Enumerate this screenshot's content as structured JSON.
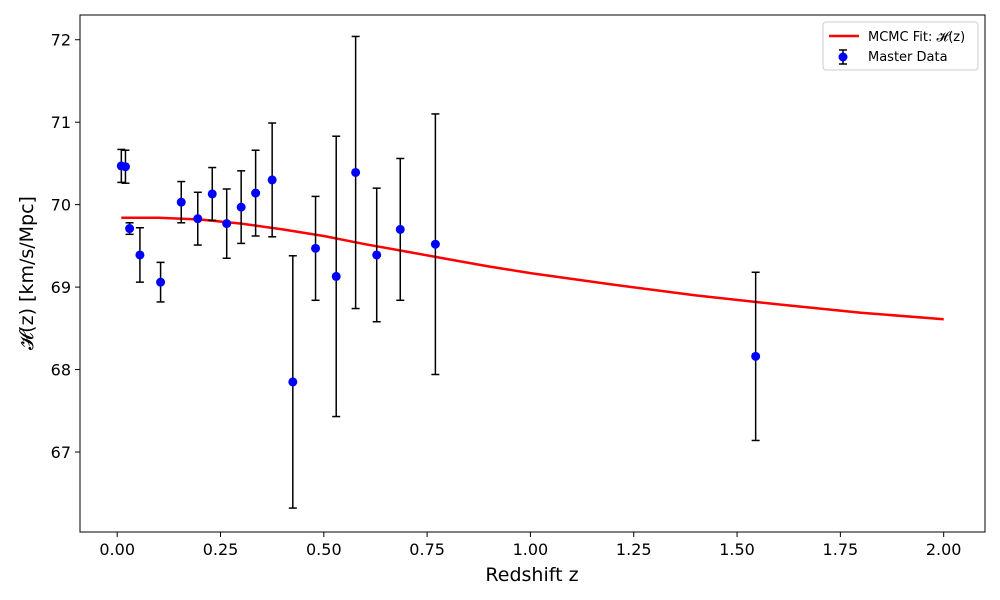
{
  "chart_data": {
    "type": "scatter",
    "xlabel": "Redshift z",
    "ylabel": "𝓗(z) [km/s/Mpc]",
    "xlim": [
      -0.09,
      2.1
    ],
    "ylim": [
      66.03,
      72.3
    ],
    "xticks": [
      "0.00",
      "0.25",
      "0.50",
      "0.75",
      "1.00",
      "1.25",
      "1.50",
      "1.75",
      "2.00"
    ],
    "xtick_values": [
      0,
      0.25,
      0.5,
      0.75,
      1.0,
      1.25,
      1.5,
      1.75,
      2.0
    ],
    "yticks": [
      "67",
      "68",
      "69",
      "70",
      "71",
      "72"
    ],
    "ytick_values": [
      67,
      68,
      69,
      70,
      71,
      72
    ],
    "grid": false,
    "legend_position": "top-right",
    "colors": {
      "fit": "#ff0000",
      "data": "#0000ff",
      "errorbar": "#000000"
    },
    "series": [
      {
        "name": "MCMC Fit: 𝓗(z)",
        "kind": "line",
        "x": [
          0.01,
          0.1,
          0.2,
          0.3,
          0.4,
          0.5,
          0.6,
          0.7,
          0.8,
          0.9,
          1.0,
          1.2,
          1.4,
          1.6,
          1.8,
          2.0
        ],
        "y": [
          69.84,
          69.84,
          69.82,
          69.77,
          69.7,
          69.62,
          69.52,
          69.43,
          69.34,
          69.25,
          69.17,
          69.03,
          68.9,
          68.79,
          68.69,
          68.61
        ]
      },
      {
        "name": "Master Data",
        "kind": "errorbar",
        "x": [
          0.01,
          0.02,
          0.03,
          0.055,
          0.105,
          0.155,
          0.195,
          0.23,
          0.265,
          0.3,
          0.335,
          0.375,
          0.425,
          0.48,
          0.53,
          0.577,
          0.628,
          0.685,
          0.77,
          1.545
        ],
        "y": [
          70.47,
          70.46,
          69.71,
          69.39,
          69.06,
          70.03,
          69.83,
          70.13,
          69.77,
          69.97,
          70.14,
          70.3,
          67.85,
          69.47,
          69.13,
          70.39,
          69.39,
          69.7,
          69.52,
          68.16
        ],
        "yerr": [
          0.2,
          0.2,
          0.07,
          0.33,
          0.24,
          0.25,
          0.32,
          0.32,
          0.42,
          0.44,
          0.52,
          0.69,
          1.53,
          0.63,
          1.7,
          1.65,
          0.81,
          0.86,
          1.58,
          1.02
        ]
      }
    ]
  }
}
